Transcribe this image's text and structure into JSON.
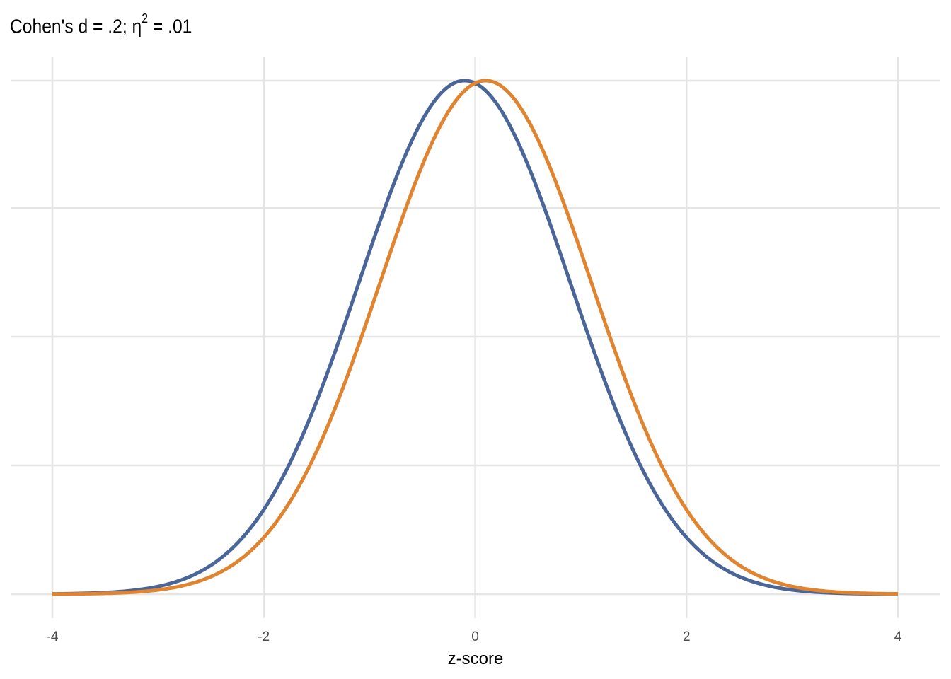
{
  "chart_data": {
    "type": "line",
    "title_prefix": "Cohen's d = .2; ",
    "title_eta": "η",
    "title_exp": "2",
    "title_suffix": " = .01",
    "xlabel": "z-score",
    "ylabel": "",
    "xlim": [
      -4,
      4
    ],
    "ylim": [
      0,
      0.3989
    ],
    "x_ticks": [
      "-4",
      "-2",
      "0",
      "2",
      "4"
    ],
    "x_tick_values": [
      -4,
      -2,
      0,
      2,
      4
    ],
    "y_grid_values": [
      0,
      0.1,
      0.2,
      0.3,
      0.4
    ],
    "grid": true,
    "legend": "none",
    "series": [
      {
        "distribution": "normal",
        "mean": -0.1,
        "sd": 1,
        "color": "#4a6598"
      },
      {
        "distribution": "normal",
        "mean": 0.1,
        "sd": 1,
        "color": "#e08430"
      }
    ]
  }
}
